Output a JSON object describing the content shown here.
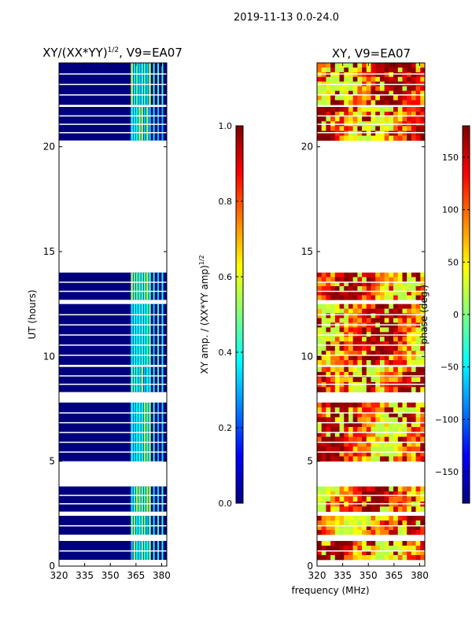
{
  "suptitle": "2019-11-13 0.0-24.0",
  "chart_data": [
    {
      "type": "heatmap",
      "title_prefix": "XY/(XX*YY)",
      "title_exp": "1/2",
      "title_suffix": ", V9=EA07",
      "xlabel": "frequency (MHz)",
      "ylabel": "UT (hours)",
      "xlim": [
        320,
        383
      ],
      "ylim": [
        0,
        24
      ],
      "xticks": [
        320,
        335,
        350,
        365,
        380
      ],
      "yticks": [
        0,
        5,
        10,
        15,
        20
      ],
      "bright_band_mhz": [
        362,
        374
      ],
      "data_blocks_hours": [
        [
          0.3,
          1.2
        ],
        [
          1.5,
          2.4
        ],
        [
          2.6,
          3.8
        ],
        [
          5.0,
          7.8
        ],
        [
          8.3,
          9.5
        ],
        [
          9.6,
          12.5
        ],
        [
          12.7,
          14.0
        ],
        [
          20.3,
          21.9
        ],
        [
          22.0,
          24.0
        ]
      ],
      "colorbar": {
        "label_prefix": "XY amp. / (XX*YY amp)",
        "label_exp": "1/2",
        "range": [
          0.0,
          1.0
        ],
        "ticks": [
          "0.0",
          "0.2",
          "0.4",
          "0.6",
          "0.8",
          "1.0"
        ],
        "colormap": "jet"
      },
      "colors": {
        "background": "#00007f",
        "highlight": "#22ccee"
      }
    },
    {
      "type": "heatmap",
      "title": "XY, V9=EA07",
      "xlim": [
        320,
        383
      ],
      "ylim": [
        0,
        24
      ],
      "xticks": [
        320,
        335,
        350,
        365,
        380
      ],
      "yticks": [
        0,
        5,
        10,
        15,
        20
      ],
      "colorbar": {
        "label": "phase (deg.)",
        "range": [
          -180,
          180
        ],
        "ticks": [
          "−150",
          "−100",
          "−50",
          "0",
          "50",
          "100",
          "150"
        ],
        "colormap": "jet"
      }
    }
  ]
}
